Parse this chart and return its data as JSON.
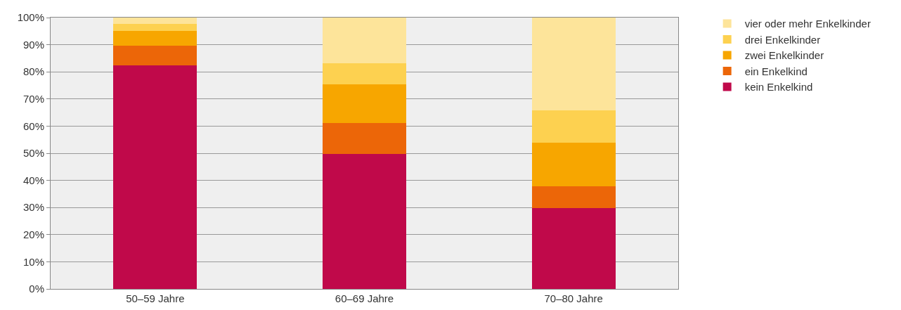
{
  "chart_data": {
    "type": "bar",
    "stacked": true,
    "categories": [
      "50–59 Jahre",
      "60–69 Jahre",
      "70–80 Jahre"
    ],
    "series": [
      {
        "name": "kein Enkelkind",
        "color": "#c0094a",
        "values": [
          82.4,
          49.7,
          29.8
        ]
      },
      {
        "name": "ein Enkelkind",
        "color": "#ec6608",
        "values": [
          7.2,
          11.4,
          8.0
        ]
      },
      {
        "name": "zwei Enkelkinder",
        "color": "#f7a600",
        "values": [
          5.5,
          14.3,
          16.1
        ]
      },
      {
        "name": "drei Enkelkinder",
        "color": "#fdd150",
        "values": [
          2.6,
          7.8,
          11.9
        ]
      },
      {
        "name": "vier oder mehr Enkelkinder",
        "color": "#fde49a",
        "values": [
          2.3,
          16.8,
          34.2
        ]
      }
    ],
    "ylim": [
      0,
      100
    ],
    "yticks": [
      {
        "value": 0,
        "label": "0%"
      },
      {
        "value": 10,
        "label": "10%"
      },
      {
        "value": 20,
        "label": "20%"
      },
      {
        "value": 30,
        "label": "30%"
      },
      {
        "value": 40,
        "label": "40%"
      },
      {
        "value": 50,
        "label": "50%"
      },
      {
        "value": 60,
        "label": "60%"
      },
      {
        "value": 70,
        "label": "70%"
      },
      {
        "value": 80,
        "label": "80%"
      },
      {
        "value": 90,
        "label": "90%"
      },
      {
        "value": 100,
        "label": "100%"
      }
    ],
    "grid": "y",
    "legend": "top right"
  }
}
